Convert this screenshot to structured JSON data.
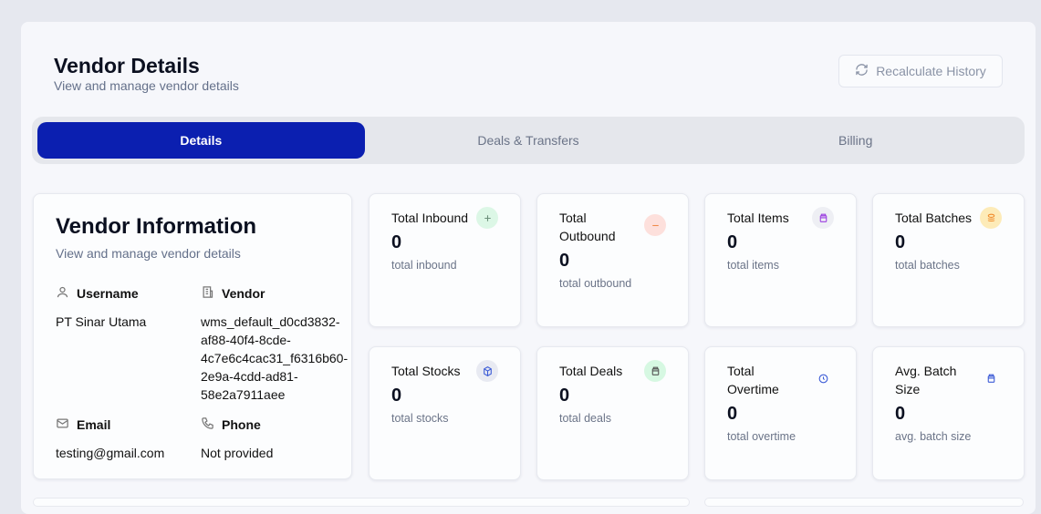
{
  "header": {
    "title": "Vendor Details",
    "subtitle": "View and manage vendor details",
    "recalculate_label": "Recalculate History"
  },
  "tabs": [
    {
      "label": "Details",
      "active": true
    },
    {
      "label": "Deals & Transfers"
    },
    {
      "label": "Billing"
    }
  ],
  "vendor_info": {
    "title": "Vendor Information",
    "subtitle": "View and manage vendor details",
    "username_label": "Username",
    "username": "PT Sinar Utama",
    "vendor_label": "Vendor",
    "vendor": "wms_default_d0cd3832-af88-40f4-8cde-4c7e6c4cac31_f6316b60-2e9a-4cdd-ad81-58e2a7911aee",
    "email_label": "Email",
    "email": "testing@gmail.com",
    "phone_label": "Phone",
    "phone": "Not provided"
  },
  "stats": [
    {
      "title": "Total Inbound",
      "value": "0",
      "desc": "total inbound",
      "icon": "plus-icon",
      "color": "#6b8f7a",
      "bg": "#dcf7e6"
    },
    {
      "title": "Total Outbound",
      "value": "0",
      "desc": "total outbound",
      "icon": "minus-icon",
      "color": "#f08a4b",
      "bg": "#fde0dc"
    },
    {
      "title": "Total Items",
      "value": "0",
      "desc": "total items",
      "icon": "box-icon",
      "color": "#9b3fe0",
      "bg": "#eeeff4"
    },
    {
      "title": "Total Batches",
      "value": "0",
      "desc": "total batches",
      "icon": "layers-icon",
      "color": "#f08a2a",
      "bg": "#fdebb8"
    },
    {
      "title": "Total Stocks",
      "value": "0",
      "desc": "total stocks",
      "icon": "package-icon",
      "color": "#3b5bd6",
      "bg": "#e8eaf2"
    },
    {
      "title": "Total Deals",
      "value": "0",
      "desc": "total deals",
      "icon": "box-icon",
      "color": "#555",
      "bg": "#d6f8e2"
    },
    {
      "title": "Total Overtime",
      "value": "0",
      "desc": "total overtime",
      "icon": "clock-icon",
      "color": "#3b5bd6",
      "bg": "transparent"
    },
    {
      "title": "Avg. Batch Size",
      "value": "0",
      "desc": "avg. batch size",
      "icon": "box-icon",
      "color": "#3b5bd6",
      "bg": "transparent"
    }
  ]
}
